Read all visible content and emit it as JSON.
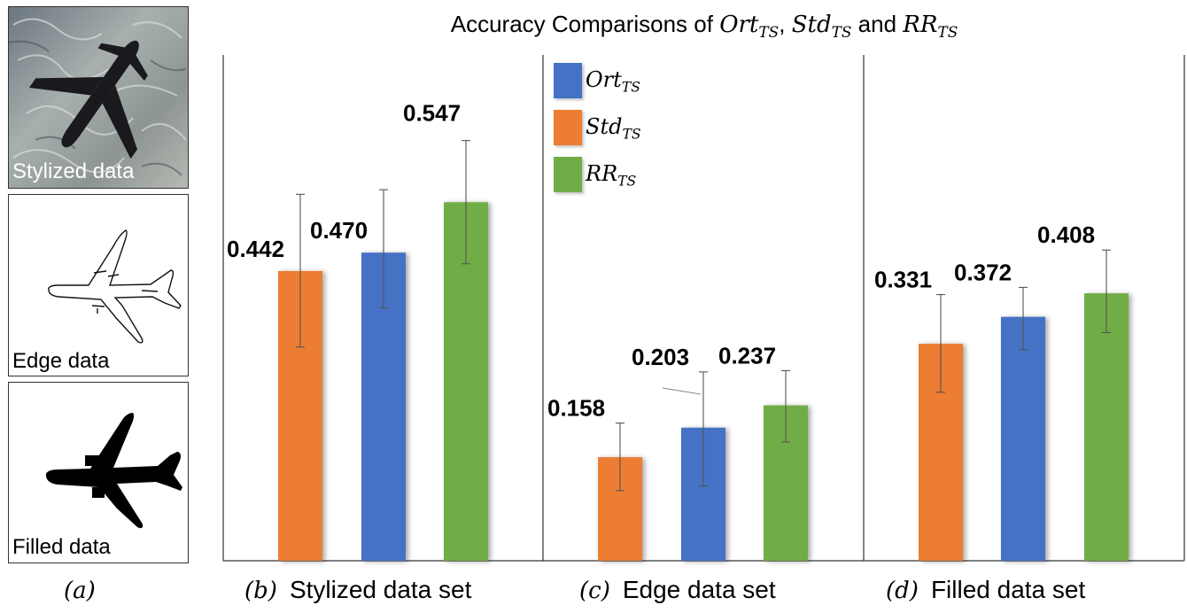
{
  "title": {
    "prefix": "Accuracy Comparisons of ",
    "m1_base": "Ort",
    "m1_sub": "TS",
    "sep": ", ",
    "m2_base": "Std",
    "m2_sub": "TS",
    "and": " and ",
    "m3_base": "RR",
    "m3_sub": "TS"
  },
  "thumbnails": [
    {
      "label": "Stylized data"
    },
    {
      "label": "Edge data"
    },
    {
      "label": "Filled data"
    }
  ],
  "legend": [
    {
      "base": "Ort",
      "sub": "TS",
      "color": "#4472c4"
    },
    {
      "base": "Std",
      "sub": "TS",
      "color": "#ed7d31"
    },
    {
      "base": "RR",
      "sub": "TS",
      "color": "#70ad47"
    }
  ],
  "captions": [
    {
      "tag": "(a)",
      "text": ""
    },
    {
      "tag": "(b)",
      "text": "Stylized data set"
    },
    {
      "tag": "(c)",
      "text": "Edge data set"
    },
    {
      "tag": "(d)",
      "text": "Filled data set"
    }
  ],
  "colors": {
    "ort": "#4472c4",
    "std": "#ed7d31",
    "rr": "#70ad47"
  },
  "chart_data": {
    "type": "bar",
    "title": "Accuracy Comparisons of Ort_TS, Std_TS and RR_TS",
    "ylim": [
      0,
      0.8
    ],
    "grid": false,
    "legend_position": "top-center",
    "panels": [
      {
        "name": "Stylized data set",
        "bars": [
          {
            "series": "Std_TS",
            "value": 0.442,
            "label": "0.442",
            "err_low": 0.326,
            "err_high": 0.559
          },
          {
            "series": "Ort_TS",
            "value": 0.47,
            "label": "0.470",
            "err_low": 0.386,
            "err_high": 0.566
          },
          {
            "series": "RR_TS",
            "value": 0.547,
            "label": "0.547",
            "err_low": 0.453,
            "err_high": 0.641
          }
        ]
      },
      {
        "name": "Edge data set",
        "bars": [
          {
            "series": "Std_TS",
            "value": 0.158,
            "label": "0.158",
            "err_low": 0.107,
            "err_high": 0.21
          },
          {
            "series": "Ort_TS",
            "value": 0.203,
            "label": "0.203",
            "err_low": 0.114,
            "err_high": 0.288
          },
          {
            "series": "RR_TS",
            "value": 0.237,
            "label": "0.237",
            "err_low": 0.181,
            "err_high": 0.29
          }
        ]
      },
      {
        "name": "Filled data set",
        "bars": [
          {
            "series": "Std_TS",
            "value": 0.331,
            "label": "0.331",
            "err_low": 0.257,
            "err_high": 0.406
          },
          {
            "series": "Ort_TS",
            "value": 0.372,
            "label": "0.372",
            "err_low": 0.322,
            "err_high": 0.417
          },
          {
            "series": "RR_TS",
            "value": 0.408,
            "label": "0.408",
            "err_low": 0.348,
            "err_high": 0.474
          }
        ]
      }
    ]
  }
}
